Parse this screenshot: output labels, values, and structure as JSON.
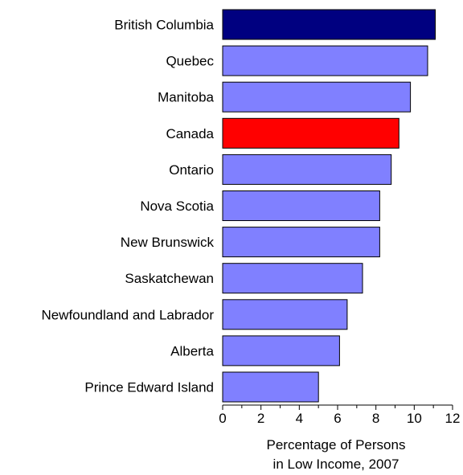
{
  "chart_data": {
    "type": "bar",
    "orientation": "horizontal",
    "categories": [
      "British Columbia",
      "Quebec",
      "Manitoba",
      "Canada",
      "Ontario",
      "Nova Scotia",
      "New Brunswick",
      "Saskatchewan",
      "Newfoundland and Labrador",
      "Alberta",
      "Prince Edward Island"
    ],
    "values": [
      11.1,
      10.7,
      9.8,
      9.2,
      8.8,
      8.2,
      8.2,
      7.3,
      6.5,
      6.1,
      5.0
    ],
    "colors": [
      "#000080",
      "#8080ff",
      "#8080ff",
      "#ff0000",
      "#8080ff",
      "#8080ff",
      "#8080ff",
      "#8080ff",
      "#8080ff",
      "#8080ff",
      "#8080ff"
    ],
    "xlabel": [
      "Percentage of Persons",
      "in Low Income, 2007"
    ],
    "xlim": [
      0,
      12
    ],
    "xticks": [
      "0",
      "2",
      "4",
      "6",
      "8",
      "10",
      "12"
    ],
    "grid": false
  }
}
